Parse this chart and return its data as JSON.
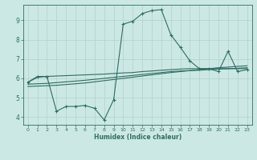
{
  "title": "",
  "xlabel": "Humidex (Indice chaleur)",
  "ylabel": "",
  "bg_color": "#cce8e4",
  "line_color": "#2e6e64",
  "grid_color": "#b0d0cc",
  "xlim": [
    -0.5,
    23.5
  ],
  "ylim": [
    3.6,
    9.8
  ],
  "xticks": [
    0,
    1,
    2,
    3,
    4,
    5,
    6,
    7,
    8,
    9,
    10,
    11,
    12,
    13,
    14,
    15,
    16,
    17,
    18,
    19,
    20,
    21,
    22,
    23
  ],
  "yticks": [
    4,
    5,
    6,
    7,
    8,
    9
  ],
  "line1_x": [
    0,
    1,
    2,
    3,
    4,
    5,
    6,
    7,
    8,
    9,
    10,
    11,
    12,
    13,
    14,
    15,
    16,
    17,
    18,
    19,
    20,
    21,
    22,
    23
  ],
  "line1_y": [
    5.8,
    6.1,
    6.1,
    4.3,
    4.55,
    4.55,
    4.6,
    4.45,
    3.85,
    4.9,
    8.8,
    8.95,
    9.35,
    9.5,
    9.55,
    8.25,
    7.6,
    6.9,
    6.5,
    6.5,
    6.35,
    7.4,
    6.35,
    6.45
  ],
  "line2_x": [
    0,
    1,
    2,
    3,
    4,
    5,
    6,
    7,
    8,
    9,
    10,
    11,
    12,
    13,
    14,
    15,
    16,
    17,
    18,
    19,
    20,
    21,
    22,
    23
  ],
  "line2_y": [
    5.8,
    6.05,
    6.1,
    6.12,
    6.14,
    6.16,
    6.18,
    6.2,
    6.22,
    6.25,
    6.28,
    6.3,
    6.35,
    6.38,
    6.42,
    6.45,
    6.48,
    6.5,
    6.5,
    6.5,
    6.5,
    6.5,
    6.5,
    6.5
  ],
  "line3_x": [
    0,
    1,
    2,
    3,
    4,
    5,
    6,
    7,
    8,
    9,
    10,
    11,
    12,
    13,
    14,
    15,
    16,
    17,
    18,
    19,
    20,
    21,
    22,
    23
  ],
  "line3_y": [
    5.7,
    5.72,
    5.74,
    5.78,
    5.82,
    5.86,
    5.9,
    5.95,
    6.0,
    6.05,
    6.1,
    6.15,
    6.2,
    6.25,
    6.3,
    6.35,
    6.38,
    6.4,
    6.42,
    6.45,
    6.48,
    6.5,
    6.52,
    6.55
  ],
  "line4_x": [
    0,
    1,
    2,
    3,
    4,
    5,
    6,
    7,
    8,
    9,
    10,
    11,
    12,
    13,
    14,
    15,
    16,
    17,
    18,
    19,
    20,
    21,
    22,
    23
  ],
  "line4_y": [
    5.58,
    5.6,
    5.62,
    5.64,
    5.68,
    5.72,
    5.76,
    5.82,
    5.88,
    5.94,
    6.0,
    6.06,
    6.12,
    6.18,
    6.24,
    6.3,
    6.35,
    6.4,
    6.45,
    6.5,
    6.55,
    6.58,
    6.62,
    6.65
  ]
}
